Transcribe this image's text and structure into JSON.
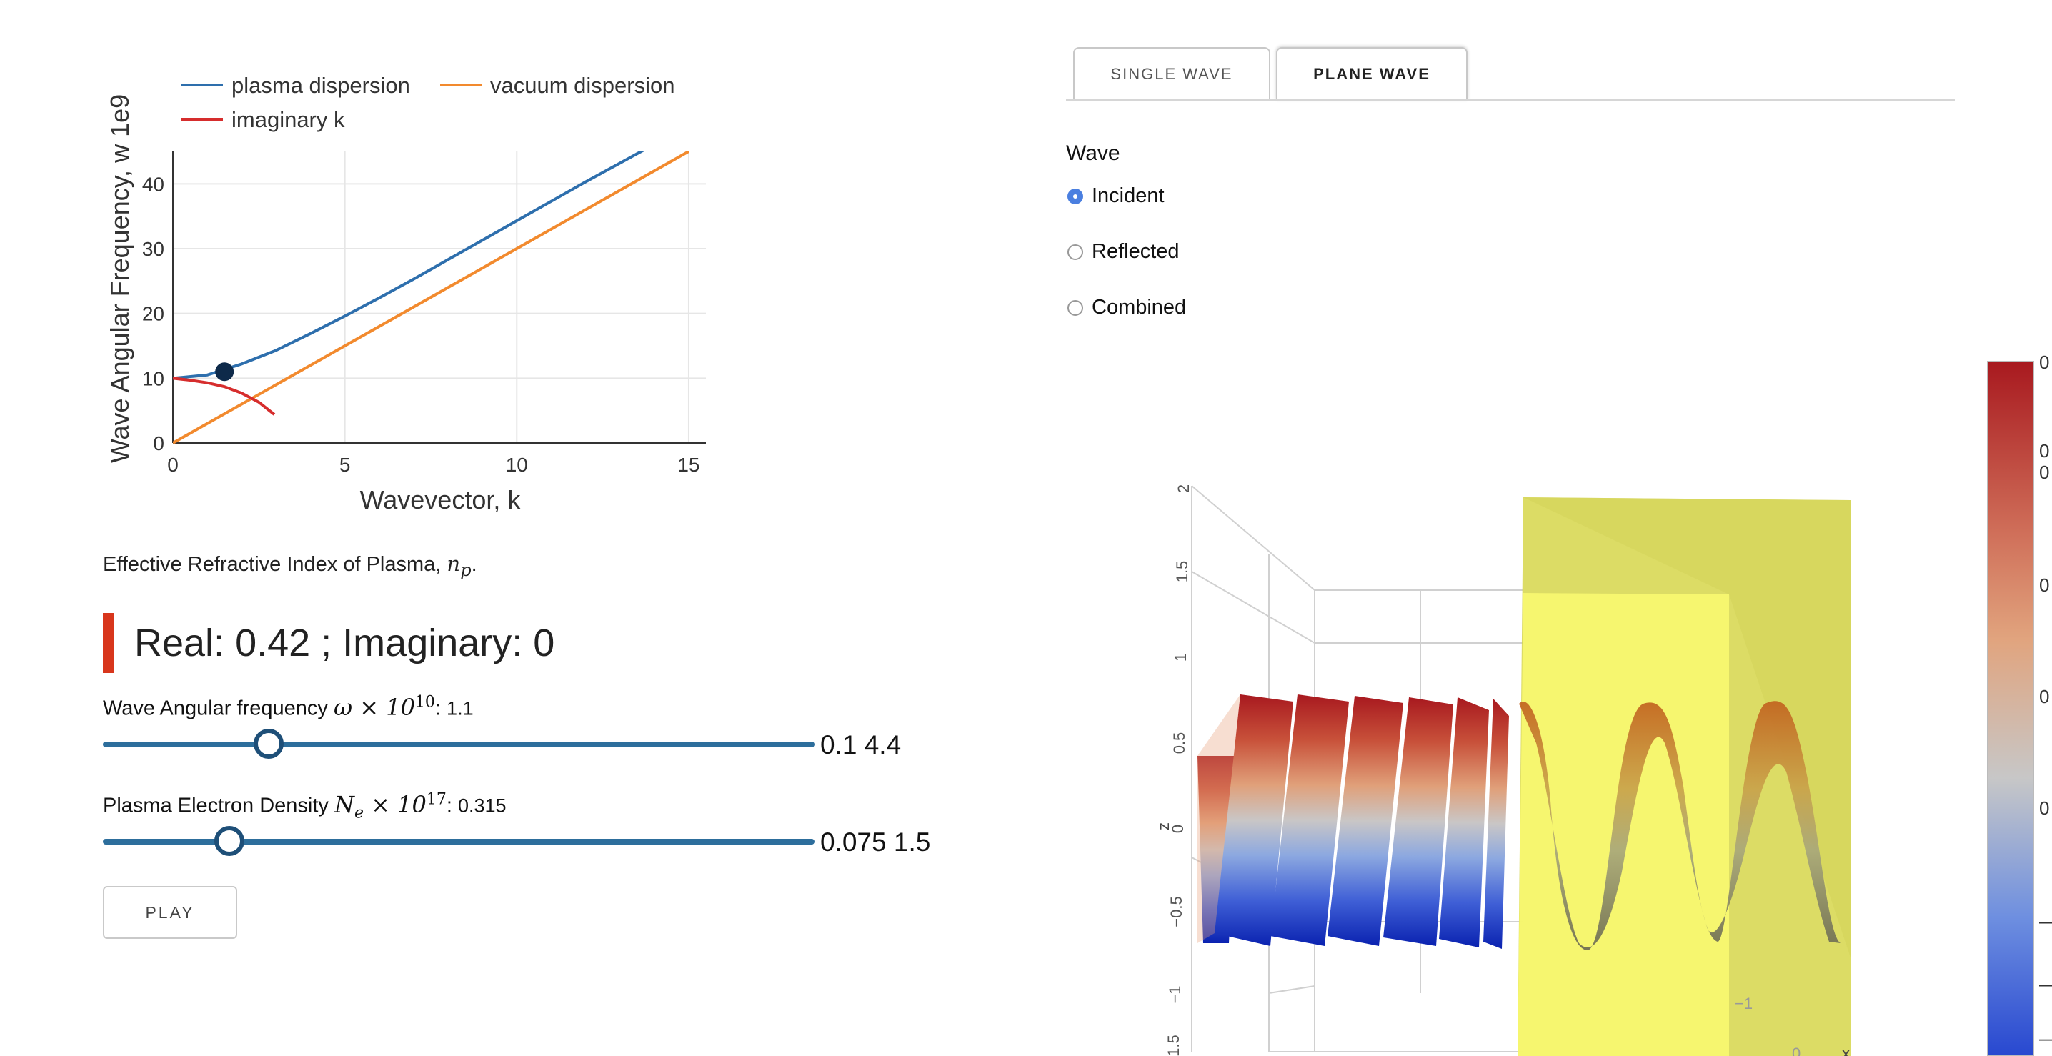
{
  "chart_data": {
    "type": "line",
    "xlabel": "Wavevector, k",
    "ylabel": "Wave Angular Frequency, w 1e9",
    "xlim": [
      0,
      15.5
    ],
    "ylim": [
      0,
      45
    ],
    "x_ticks": [
      0,
      5,
      10,
      15
    ],
    "y_ticks": [
      0,
      10,
      20,
      30,
      40
    ],
    "grid": true,
    "legend_position": "top",
    "series": [
      {
        "name": "plasma dispersion",
        "color": "#2e6fad",
        "x": [
          0,
          1,
          2,
          3,
          4,
          5,
          6,
          7,
          8,
          9,
          10,
          11,
          12,
          13,
          14,
          15
        ],
        "y": [
          10,
          10.5,
          12.2,
          14.3,
          16.9,
          19.6,
          22.4,
          25.3,
          28.3,
          31.3,
          34.3,
          37.3,
          40.3,
          43.2,
          46.1,
          49
        ]
      },
      {
        "name": "vacuum dispersion",
        "color": "#f28a2e",
        "x": [
          0,
          15
        ],
        "y": [
          0,
          45
        ]
      },
      {
        "name": "imaginary k",
        "color": "#d62d2d",
        "x": [
          0,
          0.5,
          1.0,
          1.5,
          2.0,
          2.5,
          2.95
        ],
        "y": [
          10,
          9.7,
          9.3,
          8.7,
          7.7,
          6.3,
          4.4
        ]
      }
    ],
    "marker": {
      "x": 1.5,
      "y": 11.0,
      "color": "#0e2a4a"
    }
  },
  "refractive": {
    "label": "Effective Refractive Index of Plasma,",
    "symbol": "n",
    "symbol_sub": "p",
    "value_text": "Real: 0.42 ; Imaginary: 0"
  },
  "slider_frequency": {
    "label": "Wave Angular frequency",
    "symbol": "ω × 10",
    "exp": "10",
    "value": "1.1",
    "min": "0.1",
    "max": "4.4",
    "fraction": 0.233
  },
  "slider_density": {
    "label": "Plasma Electron Density",
    "symbol_main": "N",
    "symbol_sub": "e",
    "symbol_rest": "× 10",
    "exp": "17",
    "value": "0.315",
    "min": "0.075",
    "max": "1.5",
    "fraction": 0.178
  },
  "play_label": "PLAY",
  "tabs": [
    {
      "label": "SINGLE WAVE",
      "active": false
    },
    {
      "label": "PLANE WAVE",
      "active": true
    }
  ],
  "wave": {
    "heading": "Wave",
    "options": [
      {
        "label": "Incident",
        "checked": true
      },
      {
        "label": "Reflected",
        "checked": false
      },
      {
        "label": "Combined",
        "checked": false
      }
    ]
  },
  "plot3d": {
    "z_axis_title": "z",
    "x_axis_title": "x",
    "z_ticks": [
      "2",
      "1.5",
      "1",
      "0.5",
      "0",
      "−0.5",
      "−1",
      "−1.5"
    ],
    "x_tick": "−1",
    "x_tick_zero": "0",
    "colorscale": [
      "#b2182b",
      "#d6604d",
      "#f4a582",
      "#bdbdbd",
      "#92c5de",
      "#4393c3",
      "#2040c8"
    ],
    "slab_color": "#f5f57a"
  },
  "colorbar_ticks": [
    "0",
    "0",
    "0",
    "0",
    "0",
    "0",
    "—",
    "—",
    "—"
  ]
}
